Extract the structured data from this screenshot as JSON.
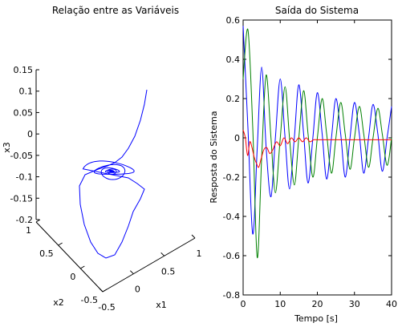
{
  "chart_data": [
    {
      "type": "line3d",
      "title": "Relação entre as Variáveis",
      "xlabel": "x1",
      "ylabel": "x2",
      "zlabel": "x3",
      "xlim": [
        -0.5,
        1
      ],
      "ylim": [
        -0.5,
        1
      ],
      "zlim": [
        -0.2,
        0.15
      ],
      "xticks": [
        "-0.5",
        "0",
        "0.5",
        "1"
      ],
      "yticks": [
        "-0.5",
        "0",
        "0.5",
        "1"
      ],
      "zticks": [
        "-0.2",
        "-0.15",
        "-0.1",
        "-0.05",
        "0",
        "0.05",
        "0.1",
        "0.15"
      ],
      "color": "#0000ff",
      "grid": false
    },
    {
      "type": "line",
      "title": "Saída do Sistema",
      "xlabel": "Tempo [s]",
      "ylabel": "Resposta do Sistema",
      "xlim": [
        0,
        40
      ],
      "ylim": [
        -0.8,
        0.6
      ],
      "xticks": [
        "0",
        "10",
        "20",
        "30",
        "40"
      ],
      "yticks": [
        "-0.8",
        "-0.6",
        "-0.4",
        "-0.2",
        "0",
        "0.2",
        "0.4",
        "0.6"
      ],
      "grid": false,
      "series": [
        {
          "color": "#0000ff",
          "x": [
            0,
            1.3,
            2.6,
            3.8,
            5.0,
            6.2,
            7.5,
            8.7,
            10,
            11.3,
            12.5,
            13.8,
            15,
            16.3,
            17.5,
            18.8,
            20,
            21.3,
            22.5,
            23.8,
            25,
            26.3,
            27.5,
            28.8,
            30,
            31.3,
            32.5,
            33.8,
            35,
            36.3,
            37.5,
            38.8,
            40
          ],
          "values": [
            0.57,
            0.05,
            -0.49,
            -0.05,
            0.36,
            -0.05,
            -0.3,
            0.0,
            0.3,
            0.0,
            -0.26,
            0.0,
            0.27,
            0.02,
            -0.23,
            0.0,
            0.23,
            0.02,
            -0.21,
            0.0,
            0.2,
            0.02,
            -0.2,
            0.0,
            0.18,
            0.02,
            -0.18,
            0.0,
            0.17,
            0.02,
            -0.17,
            0.0,
            0.16
          ]
        },
        {
          "color": "#008000",
          "x": [
            0,
            1.3,
            2.6,
            3.8,
            5.0,
            6.2,
            7.5,
            8.7,
            10,
            11.3,
            12.5,
            13.8,
            15,
            16.3,
            17.5,
            18.8,
            20,
            21.3,
            22.5,
            23.8,
            25,
            26.3,
            27.5,
            28.8,
            30,
            31.3,
            32.5,
            33.8,
            35,
            36.3,
            37.5,
            38.8,
            40
          ],
          "values": [
            0.3,
            0.55,
            0.05,
            -0.61,
            -0.1,
            0.32,
            0.0,
            -0.28,
            0.0,
            0.26,
            0.0,
            -0.24,
            0.0,
            0.24,
            0.02,
            -0.2,
            0.0,
            0.2,
            0.02,
            -0.18,
            0.0,
            0.18,
            0.02,
            -0.16,
            0.0,
            0.16,
            0.02,
            -0.15,
            0.0,
            0.15,
            0.02,
            -0.14,
            0.0
          ]
        },
        {
          "color": "#ff0000",
          "x": [
            0,
            0.6,
            1.2,
            1.8,
            2.4,
            3.0,
            3.6,
            4.2,
            4.8,
            5.6,
            6.4,
            7.2,
            8.0,
            9.0,
            10,
            11,
            12,
            13,
            14,
            15,
            16,
            17,
            18,
            19,
            20,
            22,
            24,
            26,
            28,
            30,
            32,
            34,
            36,
            38,
            40
          ],
          "values": [
            0.04,
            0.0,
            -0.09,
            -0.02,
            -0.05,
            -0.1,
            -0.13,
            -0.15,
            -0.11,
            -0.06,
            -0.05,
            -0.08,
            -0.06,
            -0.02,
            -0.04,
            0.0,
            -0.03,
            0.0,
            -0.02,
            0.0,
            -0.02,
            0.0,
            -0.02,
            -0.01,
            -0.01,
            -0.01,
            -0.01,
            -0.01,
            -0.01,
            -0.01,
            -0.01,
            -0.01,
            -0.01,
            -0.01,
            -0.01
          ]
        }
      ]
    }
  ]
}
